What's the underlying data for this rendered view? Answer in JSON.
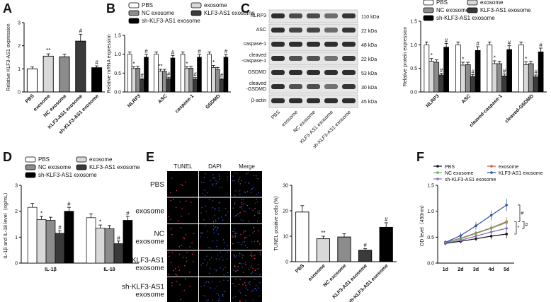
{
  "panels": {
    "A": "A",
    "B": "B",
    "C": "C",
    "D": "D",
    "E": "E",
    "F": "F"
  },
  "colors": {
    "PBS": "#ffffff",
    "exosome": "#d9d9d9",
    "NC exosome": "#8c8c8c",
    "KLF3-AS1 exosome": "#3a3a3a",
    "sh-KLF3-AS1 exosome": "#000000",
    "lineF": {
      "PBS": "#111111",
      "exosome": "#d9534f",
      "NC exosome": "#5cb85c",
      "KLF3-AS1 exosome": "#2e4f9e",
      "sh-KLF3-AS1 exosome": "#8e6bbf"
    }
  },
  "blot": {
    "rows": [
      {
        "name": "NLRP3",
        "kda": "110 kDa"
      },
      {
        "name": "ASC",
        "kda": "22 kDa"
      },
      {
        "name": "caspase-1",
        "kda": "48 kDa"
      },
      {
        "name": "cleaved\n-caspase-1",
        "kda": "22 kDa"
      },
      {
        "name": "GSDMD",
        "kda": "53 kDa"
      },
      {
        "name": "cleaved\n-GSDMD",
        "kda": "30 kDa"
      },
      {
        "name": "β-actin",
        "kda": "45 kDa"
      }
    ],
    "lanes": [
      "PBS",
      "exosome",
      "NC exosome",
      "KLF3-AS1 exosome",
      "sh-KLF3-AS1 exosome"
    ]
  },
  "imaging": {
    "columns": [
      "TUNEL",
      "DAPI",
      "Merge"
    ],
    "rows": [
      "PBS",
      "exosome",
      "NC\nexosome",
      "KLF3-AS1\nexosome",
      "sh-KLF3-AS1\nexosome"
    ]
  },
  "chart_data": [
    {
      "panel": "A",
      "type": "bar",
      "categories": [
        "PBS",
        "exosome",
        "NC exosome",
        "KLF3-AS1 exosome",
        "sh-KLF3-AS1 exosome"
      ],
      "values": [
        1.0,
        1.55,
        1.52,
        2.2,
        1.05
      ],
      "errors": [
        0.08,
        0.1,
        0.12,
        0.3,
        0.08
      ],
      "sig": [
        "",
        "**",
        "",
        "#",
        "#"
      ],
      "ylabel": "Relative KLF3-AS1 expression",
      "ylim": [
        0,
        3
      ],
      "yticks": [
        0,
        1,
        2,
        3
      ]
    },
    {
      "panel": "B",
      "type": "bar",
      "groups": [
        "NLRP3",
        "ASC",
        "caspase-1",
        "GSDMD"
      ],
      "series": [
        {
          "name": "PBS",
          "values": [
            1.0,
            1.0,
            1.0,
            1.0
          ]
        },
        {
          "name": "exosome",
          "values": [
            0.62,
            0.55,
            0.62,
            0.65
          ]
        },
        {
          "name": "NC exosome",
          "values": [
            0.63,
            0.55,
            0.63,
            0.6
          ]
        },
        {
          "name": "KLF3-AS1 exosome",
          "values": [
            0.33,
            0.35,
            0.34,
            0.33
          ]
        },
        {
          "name": "sh-KLF3-AS1 exosome",
          "values": [
            0.92,
            0.9,
            0.92,
            0.92
          ]
        }
      ],
      "errors": [
        0.06,
        0.05,
        0.05,
        0.04,
        0.07
      ],
      "sig": [
        [
          "",
          "*",
          "",
          "#",
          "#"
        ],
        [
          "",
          "**",
          "",
          "#",
          "#"
        ],
        [
          "",
          "*",
          "",
          "#",
          "#"
        ],
        [
          "",
          "*",
          "",
          "#",
          "#"
        ]
      ],
      "ylabel": "Relative mRNA expression",
      "ylim": [
        0,
        1.5
      ],
      "yticks": [
        0,
        0.5,
        1.0,
        1.5
      ],
      "legend": [
        "PBS",
        "exosome",
        "NC exosome",
        "KLF3-AS1 exosome",
        "sh-KLF3-AS1 exosome"
      ]
    },
    {
      "panel": "C",
      "type": "bar",
      "groups": [
        "NLRP3",
        "ASC",
        "cleaved-caspase-1",
        "cleaved-GSDMD"
      ],
      "series": [
        {
          "name": "PBS",
          "values": [
            1.0,
            1.0,
            1.0,
            1.0
          ]
        },
        {
          "name": "exosome",
          "values": [
            0.65,
            0.57,
            0.6,
            0.58
          ]
        },
        {
          "name": "NC exosome",
          "values": [
            0.63,
            0.58,
            0.6,
            0.6
          ]
        },
        {
          "name": "KLF3-AS1 exosome",
          "values": [
            0.36,
            0.33,
            0.34,
            0.32
          ]
        },
        {
          "name": "sh-KLF3-AS1 exosome",
          "values": [
            0.95,
            0.88,
            0.9,
            0.85
          ]
        }
      ],
      "errors": [
        0.06,
        0.06,
        0.05,
        0.04,
        0.08
      ],
      "sig": [
        [
          "",
          "*",
          "",
          "#",
          "#"
        ],
        [
          "",
          "*",
          "",
          "#",
          "#"
        ],
        [
          "",
          "*",
          "",
          "#",
          "#"
        ],
        [
          "",
          "*",
          "",
          "#",
          "#"
        ]
      ],
      "ylabel": "Relative protein expression",
      "ylim": [
        0,
        1.5
      ],
      "yticks": [
        0,
        0.5,
        1.0,
        1.5
      ],
      "legend": [
        "PBS",
        "exosome",
        "NC exosome",
        "KLF3-AS1 exosome",
        "sh-KLF3-AS1 exosome"
      ]
    },
    {
      "panel": "D",
      "type": "bar",
      "groups": [
        "IL-1β",
        "IL-18"
      ],
      "series": [
        {
          "name": "PBS",
          "values": [
            2.15,
            1.75
          ]
        },
        {
          "name": "exosome",
          "values": [
            1.68,
            1.35
          ]
        },
        {
          "name": "NC exosome",
          "values": [
            1.65,
            1.33
          ]
        },
        {
          "name": "KLF3-AS1 exosome",
          "values": [
            1.15,
            0.75
          ]
        },
        {
          "name": "sh-KLF3-AS1 exosome",
          "values": [
            2.0,
            1.65
          ]
        }
      ],
      "errors": [
        0.15,
        0.12,
        0.12,
        0.1,
        0.15
      ],
      "sig": [
        [
          "",
          "*",
          "",
          "#",
          "#"
        ],
        [
          "",
          "*",
          "",
          "#",
          "#"
        ]
      ],
      "ylabel": "IL-1β and IL-18 level（ng/mL）",
      "ylim": [
        0,
        3
      ],
      "yticks": [
        0,
        1,
        2,
        3
      ],
      "legend": [
        "PBS",
        "exosome",
        "NC exosome",
        "KLF3-AS1 exosome",
        "sh-KLF3-AS1 exosome"
      ]
    },
    {
      "panel": "E",
      "type": "bar",
      "categories": [
        "PBS",
        "exosome",
        "NC exosome",
        "KLF3-AS1 exosome",
        "sh-KLF3-AS1 exosome"
      ],
      "values": [
        19.5,
        9.0,
        9.7,
        4.5,
        13.5
      ],
      "errors": [
        2.5,
        1.0,
        1.3,
        0.6,
        1.8
      ],
      "sig": [
        "",
        "**",
        "",
        "#",
        "#"
      ],
      "ylabel": "TUNEL positive cells (%)",
      "ylim": [
        0,
        30
      ],
      "yticks": [
        0,
        10,
        20,
        30
      ]
    },
    {
      "panel": "F",
      "type": "line",
      "x": [
        "1d",
        "2d",
        "3d",
        "4d",
        "5d"
      ],
      "series": [
        {
          "name": "PBS",
          "values": [
            0.38,
            0.42,
            0.47,
            0.52,
            0.56
          ]
        },
        {
          "name": "exosome",
          "values": [
            0.4,
            0.48,
            0.58,
            0.68,
            0.8
          ]
        },
        {
          "name": "NC exosome",
          "values": [
            0.4,
            0.47,
            0.57,
            0.67,
            0.78
          ]
        },
        {
          "name": "KLF3-AS1 exosome",
          "values": [
            0.4,
            0.53,
            0.72,
            0.92,
            1.12
          ]
        },
        {
          "name": "sh-KLF3-AS1 exosome",
          "values": [
            0.39,
            0.44,
            0.52,
            0.6,
            0.67
          ]
        }
      ],
      "errors": [
        0.04,
        0.05,
        0.06,
        0.08,
        0.1
      ],
      "ylabel": "OD level（450nm）",
      "ylim": [
        0,
        1.5
      ],
      "yticks": [
        0,
        0.5,
        1.0,
        1.5
      ],
      "sig_brackets": [
        "*",
        "#",
        "#"
      ],
      "legend": [
        "PBS",
        "exosome",
        "NC exosome",
        "KLF3-AS1 exosome",
        "sh-KLF3-AS1 exosome"
      ]
    }
  ]
}
